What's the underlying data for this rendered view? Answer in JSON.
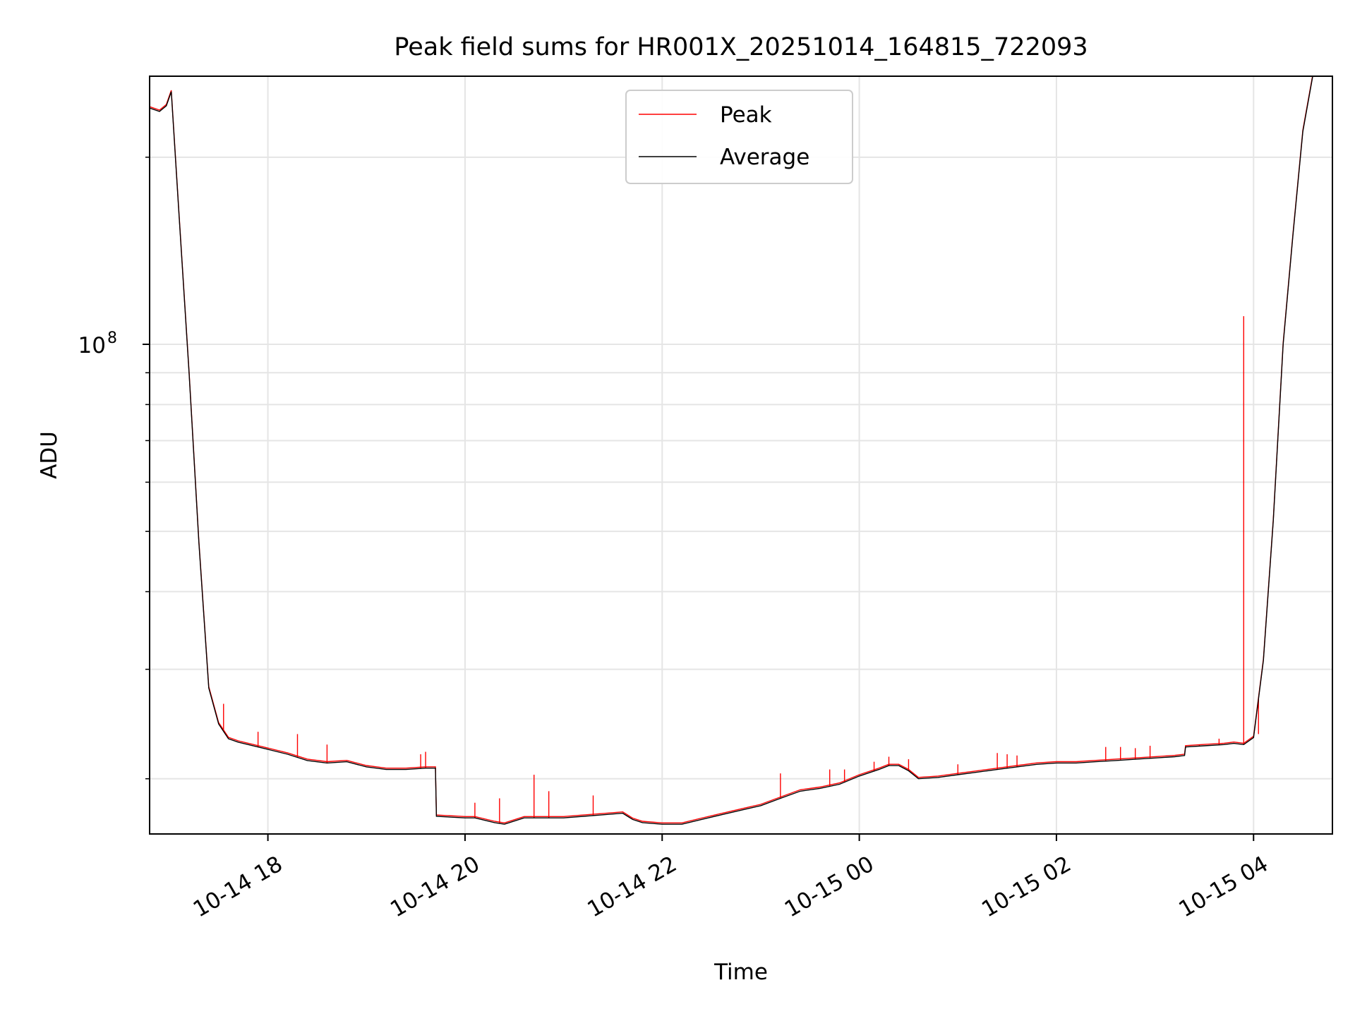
{
  "chart_data": {
    "type": "line",
    "title": "Peak field sums for HR001X_20251014_164815_722093",
    "xlabel": "Time",
    "ylabel": "ADU",
    "yscale": "log",
    "grid": true,
    "legend_position": "top-center",
    "x_unit": "hours since 2025-10-14 16:00",
    "xlim": [
      16.8,
      28.8
    ],
    "ylim": [
      16300000,
      270000000
    ],
    "x_ticks": [
      {
        "x": 18,
        "label": "10-14 18"
      },
      {
        "x": 20,
        "label": "10-14 20"
      },
      {
        "x": 22,
        "label": "10-14 22"
      },
      {
        "x": 24,
        "label": "10-15 00"
      },
      {
        "x": 26,
        "label": "10-15 02"
      },
      {
        "x": 28,
        "label": "10-15 04"
      }
    ],
    "y_major_tick": {
      "value": 100000000,
      "base": "10",
      "exponent": "8"
    },
    "y_minor_ticks": [
      20000000,
      30000000,
      40000000,
      50000000,
      60000000,
      70000000,
      80000000,
      90000000,
      200000000
    ],
    "series": [
      {
        "name": "Average",
        "color": "#000000",
        "x": [
          16.8,
          16.9,
          16.97,
          17.02,
          17.1,
          17.2,
          17.3,
          17.4,
          17.5,
          17.6,
          17.7,
          17.8,
          17.9,
          18.0,
          18.2,
          18.4,
          18.6,
          18.8,
          19.0,
          19.1,
          19.2,
          19.4,
          19.6,
          19.7,
          19.71,
          20.0,
          20.1,
          20.3,
          20.4,
          20.6,
          20.8,
          21.0,
          21.2,
          21.4,
          21.6,
          21.7,
          21.8,
          22.0,
          22.2,
          22.4,
          22.6,
          22.8,
          23.0,
          23.2,
          23.4,
          23.6,
          23.8,
          24.0,
          24.2,
          24.3,
          24.4,
          24.5,
          24.6,
          24.8,
          25.0,
          25.2,
          25.4,
          25.6,
          25.8,
          26.0,
          26.2,
          26.4,
          26.6,
          26.8,
          27.0,
          27.2,
          27.3,
          27.31,
          27.5,
          27.7,
          27.8,
          27.9,
          28.0,
          28.1,
          28.2,
          28.3,
          28.4,
          28.5,
          28.6,
          28.7,
          28.8
        ],
        "values": [
          240000000,
          237000000,
          242000000,
          255000000,
          160000000,
          90000000,
          48000000,
          28000000,
          24500000,
          23200000,
          22900000,
          22700000,
          22500000,
          22300000,
          21900000,
          21400000,
          21200000,
          21300000,
          20900000,
          20800000,
          20700000,
          20700000,
          20800000,
          20800000,
          17400000,
          17300000,
          17300000,
          17000000,
          16900000,
          17300000,
          17300000,
          17300000,
          17400000,
          17500000,
          17600000,
          17200000,
          17000000,
          16900000,
          16900000,
          17200000,
          17500000,
          17800000,
          18100000,
          18600000,
          19100000,
          19300000,
          19600000,
          20200000,
          20700000,
          21000000,
          21000000,
          20600000,
          20000000,
          20100000,
          20300000,
          20500000,
          20700000,
          20900000,
          21100000,
          21200000,
          21200000,
          21300000,
          21400000,
          21500000,
          21600000,
          21700000,
          21800000,
          22500000,
          22600000,
          22700000,
          22800000,
          22700000,
          23300000,
          31000000,
          52000000,
          100000000,
          150000000,
          220000000,
          270000000,
          270000000,
          270000000
        ]
      },
      {
        "name": "Peak",
        "color": "#ff0000",
        "spikes": [
          {
            "x": 17.55,
            "value": 26400000
          },
          {
            "x": 17.9,
            "value": 23800000
          },
          {
            "x": 18.3,
            "value": 23600000
          },
          {
            "x": 18.6,
            "value": 22700000
          },
          {
            "x": 19.55,
            "value": 21900000
          },
          {
            "x": 19.6,
            "value": 22100000
          },
          {
            "x": 20.1,
            "value": 18300000
          },
          {
            "x": 20.35,
            "value": 18600000
          },
          {
            "x": 20.7,
            "value": 20300000
          },
          {
            "x": 20.85,
            "value": 19100000
          },
          {
            "x": 21.3,
            "value": 18800000
          },
          {
            "x": 23.2,
            "value": 20400000
          },
          {
            "x": 23.7,
            "value": 20700000
          },
          {
            "x": 23.85,
            "value": 20700000
          },
          {
            "x": 24.15,
            "value": 21300000
          },
          {
            "x": 24.3,
            "value": 21700000
          },
          {
            "x": 24.5,
            "value": 21500000
          },
          {
            "x": 25.0,
            "value": 21100000
          },
          {
            "x": 25.4,
            "value": 22000000
          },
          {
            "x": 25.5,
            "value": 21900000
          },
          {
            "x": 25.6,
            "value": 21800000
          },
          {
            "x": 26.5,
            "value": 22500000
          },
          {
            "x": 26.65,
            "value": 22500000
          },
          {
            "x": 26.8,
            "value": 22400000
          },
          {
            "x": 26.95,
            "value": 22600000
          },
          {
            "x": 27.45,
            "value": 22700000
          },
          {
            "x": 27.65,
            "value": 23200000
          },
          {
            "x": 27.9,
            "value": 111000000
          },
          {
            "x": 28.05,
            "value": 23600000
          }
        ]
      }
    ],
    "legend": [
      {
        "label": "Peak",
        "color": "#ff0000"
      },
      {
        "label": "Average",
        "color": "#000000"
      }
    ]
  }
}
